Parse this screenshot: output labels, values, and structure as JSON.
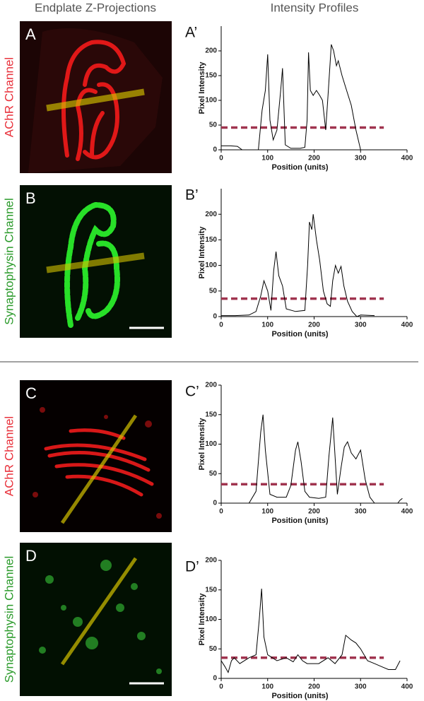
{
  "figure": {
    "headers": [
      "Endplate Z-Projections",
      "Intensity Profiles"
    ],
    "panels": [
      {
        "label": "A",
        "channel": "AChR Channel"
      },
      {
        "label": "B",
        "channel": "Synaptophysin Channel"
      },
      {
        "label": "C",
        "channel": "AChR Channel"
      },
      {
        "label": "D",
        "channel": "Synaptophysin Channel"
      }
    ]
  },
  "chart_data": [
    {
      "type": "line",
      "panel_label": "A’",
      "x_label": "Position (units)",
      "y_label": "Pixel Intensity",
      "xlim": [
        0,
        400
      ],
      "xticks": [
        0,
        100,
        200,
        300,
        400
      ],
      "ylim": [
        0,
        250
      ],
      "yticks": [
        0,
        50,
        100,
        150,
        200
      ],
      "threshold": 45,
      "threshold_xrange": [
        0,
        350
      ],
      "threshold_color": "#a0344f",
      "color": "#000000",
      "x": [
        0,
        20,
        35,
        45,
        60,
        80,
        88,
        95,
        100,
        105,
        112,
        120,
        128,
        132,
        138,
        150,
        170,
        180,
        185,
        188,
        192,
        198,
        205,
        212,
        218,
        225,
        230,
        237,
        242,
        248,
        252,
        260,
        270,
        280,
        290,
        300
      ],
      "values": [
        8,
        8,
        7,
        0,
        0,
        0,
        80,
        120,
        193,
        60,
        20,
        40,
        120,
        165,
        10,
        3,
        3,
        5,
        60,
        197,
        120,
        110,
        120,
        110,
        100,
        40,
        110,
        213,
        200,
        170,
        180,
        150,
        120,
        90,
        40,
        0
      ]
    },
    {
      "type": "line",
      "panel_label": "B’",
      "x_label": "Position (units)",
      "y_label": "Pixel Intensity",
      "xlim": [
        0,
        400
      ],
      "xticks": [
        0,
        100,
        200,
        300,
        400
      ],
      "ylim": [
        0,
        250
      ],
      "yticks": [
        0,
        50,
        100,
        150,
        200
      ],
      "threshold": 35,
      "threshold_xrange": [
        0,
        350
      ],
      "threshold_color": "#a0344f",
      "color": "#000000",
      "x": [
        0,
        30,
        60,
        75,
        85,
        92,
        100,
        107,
        113,
        118,
        124,
        132,
        140,
        160,
        180,
        186,
        190,
        195,
        198,
        205,
        212,
        220,
        228,
        235,
        240,
        246,
        252,
        258,
        264,
        272,
        282,
        292,
        300,
        330
      ],
      "values": [
        2,
        2,
        3,
        10,
        40,
        70,
        50,
        12,
        90,
        127,
        80,
        60,
        15,
        10,
        12,
        100,
        185,
        170,
        200,
        150,
        110,
        50,
        25,
        20,
        70,
        100,
        85,
        98,
        60,
        30,
        10,
        0,
        3,
        2
      ]
    },
    {
      "type": "line",
      "panel_label": "C’",
      "x_label": "Position (units)",
      "y_label": "Pixel Intensity",
      "xlim": [
        0,
        400
      ],
      "xticks": [
        0,
        100,
        200,
        300,
        400
      ],
      "ylim": [
        0,
        200
      ],
      "yticks": [
        0,
        50,
        100,
        150,
        200
      ],
      "threshold": 32,
      "threshold_xrange": [
        0,
        350
      ],
      "threshold_color": "#a0344f",
      "color": "#000000",
      "x": [
        0,
        60,
        75,
        85,
        90,
        95,
        105,
        120,
        140,
        150,
        160,
        165,
        172,
        180,
        190,
        210,
        225,
        232,
        240,
        245,
        250,
        258,
        265,
        272,
        280,
        290,
        300,
        310,
        320,
        330,
        355,
        380,
        385,
        390
      ],
      "values": [
        0,
        0,
        20,
        120,
        150,
        90,
        15,
        10,
        10,
        30,
        90,
        104,
        70,
        20,
        10,
        8,
        10,
        80,
        145,
        80,
        15,
        60,
        95,
        104,
        85,
        75,
        90,
        40,
        10,
        0,
        null,
        0,
        5,
        8
      ]
    },
    {
      "type": "line",
      "panel_label": "D’",
      "x_label": "Position (units)",
      "y_label": "Pixel Intensity",
      "xlim": [
        0,
        400
      ],
      "xticks": [
        0,
        100,
        200,
        300,
        400
      ],
      "ylim": [
        0,
        200
      ],
      "yticks": [
        0,
        50,
        100,
        150,
        200
      ],
      "threshold": 35,
      "threshold_xrange": [
        0,
        350
      ],
      "threshold_color": "#a0344f",
      "color": "#000000",
      "x": [
        0,
        8,
        15,
        22,
        28,
        40,
        60,
        75,
        82,
        87,
        92,
        100,
        120,
        140,
        155,
        165,
        175,
        185,
        210,
        230,
        245,
        260,
        268,
        280,
        290,
        300,
        315,
        330,
        345,
        360,
        375,
        385
      ],
      "values": [
        30,
        20,
        10,
        30,
        35,
        25,
        35,
        40,
        100,
        152,
        70,
        40,
        30,
        35,
        28,
        40,
        30,
        25,
        25,
        35,
        25,
        40,
        73,
        65,
        60,
        50,
        30,
        25,
        20,
        15,
        15,
        30
      ]
    }
  ]
}
